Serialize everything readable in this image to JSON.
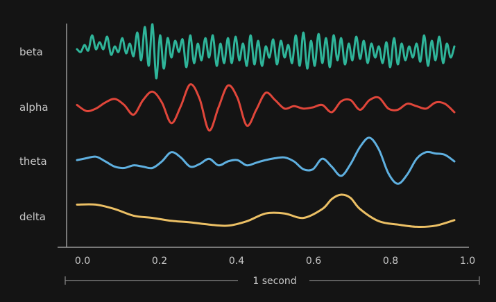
{
  "chart_data": {
    "type": "line",
    "title": "",
    "xlabel": "",
    "ylabel": "",
    "xlim": [
      0.0,
      1.0
    ],
    "grid": false,
    "x_ticks": [
      "0.0",
      "0.2",
      "0.4",
      "0.6",
      "0.8",
      "1.0"
    ],
    "scale_bar": {
      "label": "1 second",
      "from": 0.0,
      "to": 1.0
    },
    "series": [
      {
        "name": "beta",
        "color": "#2fb59a",
        "x": [
          0.0,
          0.01,
          0.02,
          0.03,
          0.04,
          0.05,
          0.06,
          0.07,
          0.08,
          0.09,
          0.1,
          0.11,
          0.12,
          0.13,
          0.14,
          0.15,
          0.16,
          0.17,
          0.18,
          0.19,
          0.2,
          0.21,
          0.22,
          0.23,
          0.24,
          0.25,
          0.26,
          0.27,
          0.28,
          0.29,
          0.3,
          0.31,
          0.32,
          0.33,
          0.34,
          0.35,
          0.36,
          0.37,
          0.38,
          0.39,
          0.4,
          0.41,
          0.42,
          0.43,
          0.44,
          0.45,
          0.46,
          0.47,
          0.48,
          0.49,
          0.5,
          0.51,
          0.52,
          0.53,
          0.54,
          0.55,
          0.56,
          0.57,
          0.58,
          0.59,
          0.6,
          0.61,
          0.62,
          0.63,
          0.64,
          0.65,
          0.66,
          0.67,
          0.68,
          0.69,
          0.7,
          0.71,
          0.72,
          0.73,
          0.74,
          0.75,
          0.76,
          0.77,
          0.78,
          0.79,
          0.8,
          0.81,
          0.82,
          0.83,
          0.84,
          0.85,
          0.86,
          0.87,
          0.88,
          0.89,
          0.9,
          0.91,
          0.92,
          0.93,
          0.94,
          0.95,
          0.96,
          0.97,
          0.98,
          0.99,
          1.0
        ],
        "values": [
          0.1,
          0.0,
          0.25,
          0.05,
          0.6,
          0.1,
          0.35,
          0.1,
          0.55,
          -0.1,
          0.2,
          0.0,
          0.5,
          -0.05,
          0.3,
          -0.15,
          0.7,
          -0.3,
          0.9,
          -0.5,
          1.0,
          -0.95,
          0.6,
          -0.6,
          0.5,
          -0.2,
          0.4,
          0.0,
          0.45,
          -0.55,
          0.6,
          -0.4,
          0.3,
          -0.3,
          0.5,
          -0.2,
          0.6,
          -0.5,
          0.3,
          -0.4,
          0.5,
          -0.4,
          0.55,
          -0.3,
          0.3,
          -0.5,
          0.6,
          -0.45,
          0.4,
          -0.5,
          0.2,
          -0.2,
          0.45,
          -0.45,
          0.4,
          -0.2,
          0.25,
          -0.4,
          0.6,
          -0.5,
          0.7,
          -0.6,
          0.4,
          -0.5,
          0.65,
          -0.4,
          0.5,
          -0.55,
          0.6,
          -0.3,
          0.5,
          -0.45,
          0.3,
          -0.3,
          0.55,
          -0.25,
          0.4,
          -0.4,
          0.3,
          -0.2,
          0.2,
          -0.4,
          0.35,
          -0.55,
          0.5,
          -0.45,
          0.3,
          -0.3,
          0.2,
          -0.2,
          0.3,
          -0.35,
          0.6,
          -0.5,
          0.4,
          -0.3,
          0.55,
          -0.4,
          0.3,
          -0.2,
          0.2
        ]
      },
      {
        "name": "alpha",
        "color": "#e0463a",
        "x": [
          0.0,
          0.025,
          0.05,
          0.075,
          0.1,
          0.125,
          0.15,
          0.175,
          0.2,
          0.225,
          0.25,
          0.275,
          0.3,
          0.325,
          0.35,
          0.375,
          0.4,
          0.425,
          0.45,
          0.475,
          0.5,
          0.525,
          0.55,
          0.575,
          0.6,
          0.625,
          0.65,
          0.675,
          0.7,
          0.725,
          0.75,
          0.775,
          0.8,
          0.825,
          0.85,
          0.875,
          0.9,
          0.925,
          0.95,
          0.975,
          1.0
        ],
        "values": [
          0.1,
          -0.15,
          -0.05,
          0.2,
          0.35,
          0.1,
          -0.3,
          0.3,
          0.65,
          0.2,
          -0.65,
          0.05,
          0.95,
          0.35,
          -0.95,
          0.0,
          0.9,
          0.4,
          -0.75,
          -0.1,
          0.6,
          0.3,
          -0.05,
          0.05,
          -0.05,
          0.0,
          0.1,
          -0.2,
          0.25,
          0.3,
          -0.1,
          0.3,
          0.4,
          -0.05,
          -0.1,
          0.15,
          0.05,
          -0.05,
          0.2,
          0.15,
          -0.2
        ]
      },
      {
        "name": "theta",
        "color": "#5fb0e0",
        "x": [
          0.0,
          0.025,
          0.05,
          0.075,
          0.1,
          0.125,
          0.15,
          0.175,
          0.2,
          0.225,
          0.25,
          0.275,
          0.3,
          0.325,
          0.35,
          0.375,
          0.4,
          0.425,
          0.45,
          0.475,
          0.5,
          0.525,
          0.55,
          0.575,
          0.6,
          0.625,
          0.65,
          0.675,
          0.7,
          0.725,
          0.75,
          0.775,
          0.8,
          0.825,
          0.85,
          0.875,
          0.9,
          0.925,
          0.95,
          0.975,
          1.0
        ],
        "values": [
          0.05,
          0.12,
          0.18,
          0.0,
          -0.2,
          -0.25,
          -0.15,
          -0.2,
          -0.25,
          0.0,
          0.35,
          0.15,
          -0.2,
          -0.1,
          0.1,
          -0.15,
          0.0,
          0.05,
          -0.15,
          -0.05,
          0.05,
          0.12,
          0.15,
          0.0,
          -0.3,
          -0.3,
          0.1,
          -0.2,
          -0.55,
          -0.1,
          0.55,
          0.9,
          0.45,
          -0.45,
          -0.85,
          -0.5,
          0.1,
          0.35,
          0.3,
          0.25,
          0.0
        ]
      },
      {
        "name": "delta",
        "color": "#ecc065",
        "x": [
          0.0,
          0.05,
          0.1,
          0.15,
          0.2,
          0.25,
          0.3,
          0.35,
          0.4,
          0.45,
          0.5,
          0.55,
          0.6,
          0.65,
          0.675,
          0.7,
          0.725,
          0.75,
          0.8,
          0.85,
          0.9,
          0.95,
          1.0
        ],
        "values": [
          0.55,
          0.55,
          0.35,
          0.05,
          -0.05,
          -0.18,
          -0.25,
          -0.35,
          -0.4,
          -0.2,
          0.15,
          0.15,
          -0.05,
          0.35,
          0.8,
          1.0,
          0.85,
          0.35,
          -0.2,
          -0.35,
          -0.45,
          -0.4,
          -0.15
        ]
      }
    ]
  }
}
